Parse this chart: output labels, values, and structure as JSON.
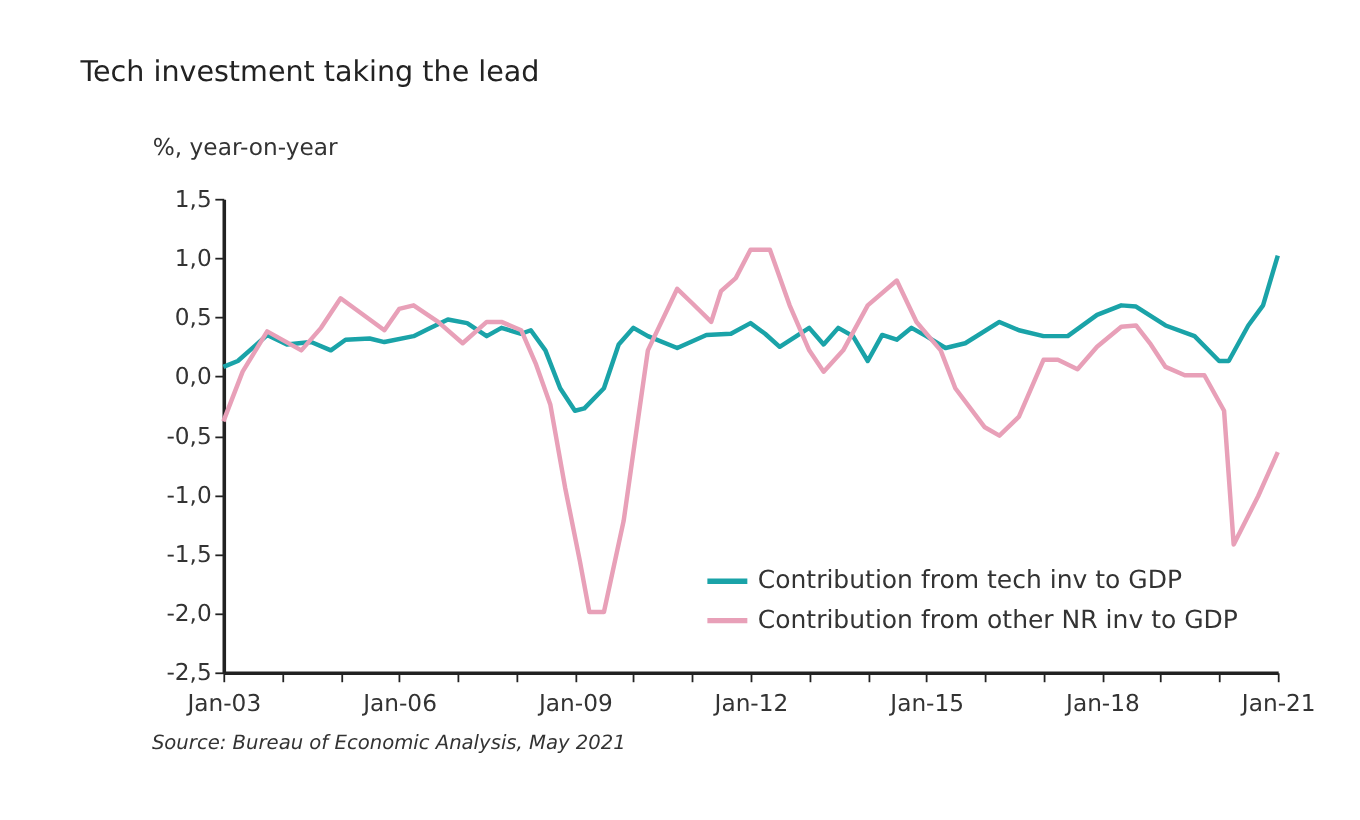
{
  "chart_data": {
    "type": "line",
    "title": "Tech investment taking the lead",
    "ylabel": "%, year-on-year",
    "annotations": [
      "Source: Bureau of Economic Analysis, May 2021"
    ],
    "xlim": [
      "2003-01",
      "2021-01"
    ],
    "xticks": [
      {
        "value": "2003-01",
        "label": "Jan-03"
      },
      {
        "value": "2004-01",
        "label": null
      },
      {
        "value": "2005-01",
        "label": null
      },
      {
        "value": "2006-01",
        "label": "Jan-06"
      },
      {
        "value": "2007-01",
        "label": null
      },
      {
        "value": "2008-01",
        "label": null
      },
      {
        "value": "2009-01",
        "label": "Jan-09"
      },
      {
        "value": "2010-01",
        "label": null
      },
      {
        "value": "2011-01",
        "label": null
      },
      {
        "value": "2012-01",
        "label": "Jan-12"
      },
      {
        "value": "2013-01",
        "label": null
      },
      {
        "value": "2014-01",
        "label": null
      },
      {
        "value": "2015-01",
        "label": "Jan-15"
      },
      {
        "value": "2016-01",
        "label": null
      },
      {
        "value": "2017-01",
        "label": null
      },
      {
        "value": "2018-01",
        "label": "Jan-18"
      },
      {
        "value": "2019-01",
        "label": null
      },
      {
        "value": "2020-01",
        "label": null
      },
      {
        "value": "2021-01",
        "label": "Jan-21"
      }
    ],
    "ylim": [
      -2.5,
      1.5
    ],
    "yticks": [
      {
        "value": -2.5,
        "label": "-2,5"
      },
      {
        "value": -2.0,
        "label": "-2,0"
      },
      {
        "value": -1.5,
        "label": "-1,5"
      },
      {
        "value": -1.0,
        "label": "-1,0"
      },
      {
        "value": -0.5,
        "label": "-0,5"
      },
      {
        "value": 0.0,
        "label": "0,0"
      },
      {
        "value": 0.5,
        "label": "0,5"
      },
      {
        "value": 1.0,
        "label": "1,0"
      },
      {
        "value": 1.5,
        "label": "1,5"
      }
    ],
    "grid": false,
    "legend": "bottom right",
    "marker": "none",
    "line_style": "solid",
    "series": [
      {
        "name": "Contribution from tech inv to GDP",
        "color": "#1aa3a8",
        "x": [
          "2003-01",
          "2003-04",
          "2003-10",
          "2004-02",
          "2004-07",
          "2004-11",
          "2005-02",
          "2005-07",
          "2005-10",
          "2006-04",
          "2006-07",
          "2006-11",
          "2007-03",
          "2007-07",
          "2007-10",
          "2008-02",
          "2008-04",
          "2008-07",
          "2008-10",
          "2009-01",
          "2009-03",
          "2009-07",
          "2009-10",
          "2010-01",
          "2010-04",
          "2010-10",
          "2011-04",
          "2011-09",
          "2012-01",
          "2012-04",
          "2012-07",
          "2013-01",
          "2013-04",
          "2013-07",
          "2013-10",
          "2014-01",
          "2014-04",
          "2014-07",
          "2014-10",
          "2015-01",
          "2015-05",
          "2015-09",
          "2016-04",
          "2016-08",
          "2017-01",
          "2017-06",
          "2017-12",
          "2018-05",
          "2018-08",
          "2019-02",
          "2019-08",
          "2020-01",
          "2020-03",
          "2020-07",
          "2020-10",
          "2021-01"
        ],
        "values": [
          0.08,
          0.13,
          0.35,
          0.27,
          0.29,
          0.22,
          0.31,
          0.32,
          0.29,
          0.34,
          0.4,
          0.48,
          0.45,
          0.34,
          0.41,
          0.36,
          0.39,
          0.22,
          -0.1,
          -0.29,
          -0.27,
          -0.1,
          0.27,
          0.41,
          0.34,
          0.24,
          0.35,
          0.36,
          0.45,
          0.36,
          0.25,
          0.41,
          0.27,
          0.41,
          0.34,
          0.13,
          0.35,
          0.31,
          0.41,
          0.34,
          0.24,
          0.28,
          0.46,
          0.39,
          0.34,
          0.34,
          0.52,
          0.6,
          0.59,
          0.43,
          0.34,
          0.13,
          0.13,
          0.43,
          0.6,
          1.02
        ]
      },
      {
        "name": "Contribution from other NR inv to GDP",
        "color": "#e8a0b8",
        "x": [
          "2003-01",
          "2003-05",
          "2003-10",
          "2004-05",
          "2004-09",
          "2005-01",
          "2005-10",
          "2006-01",
          "2006-04",
          "2006-09",
          "2007-02",
          "2007-07",
          "2007-10",
          "2008-02",
          "2008-05",
          "2008-08",
          "2008-11",
          "2009-02",
          "2009-04",
          "2009-07",
          "2009-11",
          "2010-02",
          "2010-04",
          "2010-10",
          "2011-01",
          "2011-05",
          "2011-07",
          "2011-10",
          "2012-01",
          "2012-05",
          "2012-09",
          "2013-01",
          "2013-04",
          "2013-08",
          "2014-01",
          "2014-07",
          "2014-11",
          "2015-04",
          "2015-07",
          "2016-01",
          "2016-04",
          "2016-08",
          "2017-01",
          "2017-04",
          "2017-08",
          "2017-12",
          "2018-05",
          "2018-08",
          "2018-11",
          "2019-02",
          "2019-06",
          "2019-10",
          "2020-02",
          "2020-04",
          "2020-09",
          "2021-01"
        ],
        "values": [
          -0.38,
          0.04,
          0.38,
          0.22,
          0.41,
          0.66,
          0.39,
          0.57,
          0.6,
          0.46,
          0.28,
          0.46,
          0.46,
          0.39,
          0.11,
          -0.24,
          -0.94,
          -1.56,
          -1.99,
          -1.99,
          -1.22,
          -0.34,
          0.22,
          0.74,
          0.62,
          0.46,
          0.72,
          0.83,
          1.07,
          1.07,
          0.6,
          0.22,
          0.04,
          0.22,
          0.6,
          0.81,
          0.46,
          0.22,
          -0.1,
          -0.43,
          -0.5,
          -0.34,
          0.14,
          0.14,
          0.06,
          0.25,
          0.42,
          0.43,
          0.27,
          0.08,
          0.01,
          0.01,
          -0.29,
          -1.42,
          -1.01,
          -0.64
        ]
      }
    ]
  }
}
